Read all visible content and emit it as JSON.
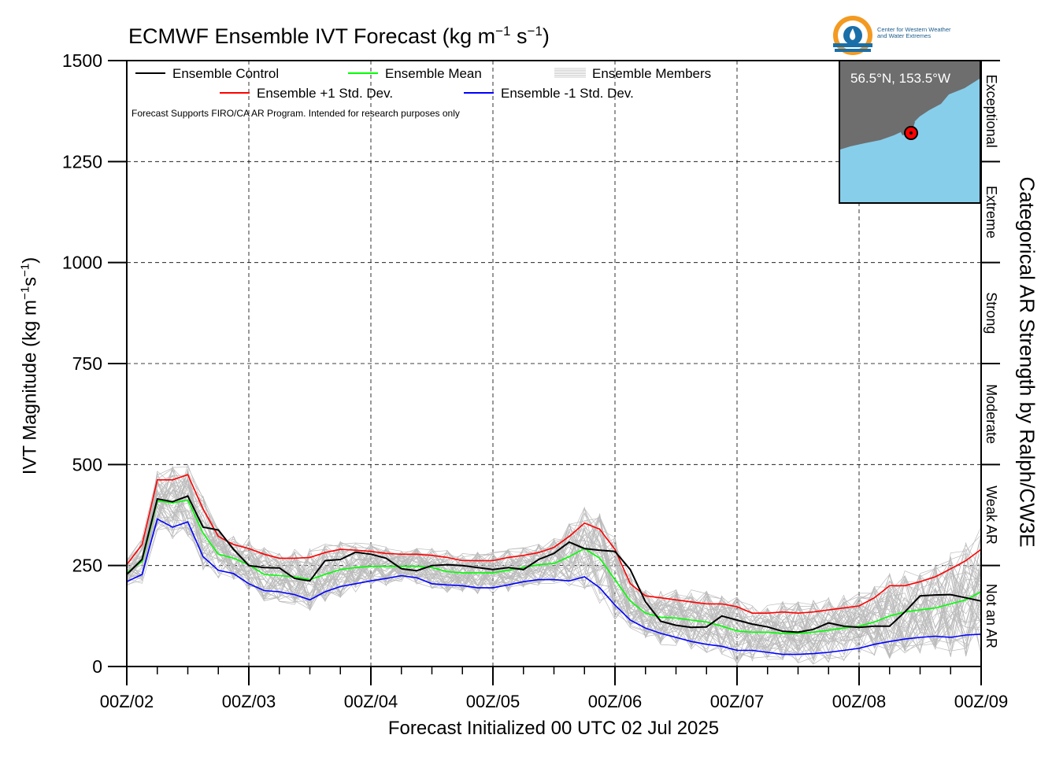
{
  "chart_data": {
    "type": "line",
    "title": "ECMWF Ensemble IVT Forecast",
    "title_units": {
      "base": "(kg m",
      "exp1": "−1",
      "mid": " s",
      "exp2": "−1",
      "end": ")"
    },
    "ylabel": {
      "base": "IVT Magnitude (kg m",
      "exp1": "−1",
      "mid": "s",
      "exp2": "−1",
      "end": ")"
    },
    "xlabel": "Forecast Initialized 00 UTC 02 Jul 2025",
    "right_label": "Categorical AR Strength by Ralph/CW3E",
    "note": "Forecast Supports FIRO/CA AR Program. Intended for research purposes only",
    "ylim": [
      0,
      1500
    ],
    "yticks": [
      0,
      250,
      500,
      750,
      1000,
      1250,
      1500
    ],
    "xlim": [
      0,
      168
    ],
    "xticks": [
      {
        "t": 0,
        "label": "00Z/02"
      },
      {
        "t": 24,
        "label": "00Z/03"
      },
      {
        "t": 48,
        "label": "00Z/04"
      },
      {
        "t": 72,
        "label": "00Z/05"
      },
      {
        "t": 96,
        "label": "00Z/06"
      },
      {
        "t": 120,
        "label": "00Z/07"
      },
      {
        "t": 144,
        "label": "00Z/08"
      },
      {
        "t": 168,
        "label": "00Z/09"
      }
    ],
    "grid": true,
    "legend_placement": "top-left",
    "categories_right": [
      {
        "label": "Not an AR",
        "from": 0,
        "to": 250
      },
      {
        "label": "Weak AR",
        "from": 250,
        "to": 500
      },
      {
        "label": "Moderate",
        "from": 500,
        "to": 750
      },
      {
        "label": "Strong",
        "from": 750,
        "to": 1000
      },
      {
        "label": "Extreme",
        "from": 1000,
        "to": 1250
      },
      {
        "label": "Exceptional",
        "from": 1250,
        "to": 1500
      }
    ],
    "series": [
      {
        "name": "Ensemble Control",
        "color": "#000000",
        "points": [
          [
            0,
            228
          ],
          [
            3,
            265
          ],
          [
            6,
            415
          ],
          [
            9,
            408
          ],
          [
            12,
            422
          ],
          [
            15,
            345
          ],
          [
            18,
            338
          ],
          [
            21,
            290
          ],
          [
            24,
            250
          ],
          [
            27,
            245
          ],
          [
            30,
            244
          ],
          [
            33,
            218
          ],
          [
            36,
            212
          ],
          [
            39,
            262
          ],
          [
            42,
            265
          ],
          [
            45,
            283
          ],
          [
            48,
            278
          ],
          [
            51,
            268
          ],
          [
            54,
            242
          ],
          [
            57,
            237
          ],
          [
            60,
            250
          ],
          [
            63,
            252
          ],
          [
            66,
            250
          ],
          [
            69,
            245
          ],
          [
            72,
            240
          ],
          [
            75,
            245
          ],
          [
            78,
            240
          ],
          [
            81,
            265
          ],
          [
            84,
            280
          ],
          [
            87,
            308
          ],
          [
            90,
            292
          ],
          [
            93,
            288
          ],
          [
            96,
            285
          ],
          [
            99,
            240
          ],
          [
            102,
            160
          ],
          [
            105,
            112
          ],
          [
            108,
            102
          ],
          [
            111,
            97
          ],
          [
            114,
            98
          ],
          [
            117,
            125
          ],
          [
            120,
            115
          ],
          [
            123,
            105
          ],
          [
            126,
            98
          ],
          [
            129,
            87
          ],
          [
            132,
            85
          ],
          [
            135,
            92
          ],
          [
            138,
            108
          ],
          [
            141,
            100
          ],
          [
            144,
            97
          ],
          [
            147,
            100
          ],
          [
            150,
            100
          ],
          [
            153,
            135
          ],
          [
            156,
            175
          ],
          [
            159,
            177
          ],
          [
            162,
            178
          ],
          [
            165,
            170
          ],
          [
            168,
            162
          ]
        ]
      },
      {
        "name": "Ensemble Mean",
        "color": "#00ff00",
        "points": [
          [
            0,
            232
          ],
          [
            3,
            260
          ],
          [
            6,
            410
          ],
          [
            9,
            405
          ],
          [
            12,
            412
          ],
          [
            15,
            330
          ],
          [
            18,
            278
          ],
          [
            21,
            268
          ],
          [
            24,
            252
          ],
          [
            27,
            228
          ],
          [
            30,
            225
          ],
          [
            33,
            222
          ],
          [
            36,
            215
          ],
          [
            39,
            228
          ],
          [
            42,
            240
          ],
          [
            45,
            245
          ],
          [
            48,
            248
          ],
          [
            51,
            248
          ],
          [
            54,
            248
          ],
          [
            57,
            248
          ],
          [
            60,
            245
          ],
          [
            63,
            235
          ],
          [
            66,
            232
          ],
          [
            69,
            232
          ],
          [
            72,
            232
          ],
          [
            75,
            238
          ],
          [
            78,
            245
          ],
          [
            81,
            252
          ],
          [
            84,
            255
          ],
          [
            87,
            272
          ],
          [
            90,
            292
          ],
          [
            93,
            268
          ],
          [
            96,
            215
          ],
          [
            99,
            162
          ],
          [
            102,
            132
          ],
          [
            105,
            122
          ],
          [
            108,
            120
          ],
          [
            111,
            115
          ],
          [
            114,
            110
          ],
          [
            117,
            100
          ],
          [
            120,
            88
          ],
          [
            123,
            85
          ],
          [
            126,
            85
          ],
          [
            129,
            82
          ],
          [
            132,
            82
          ],
          [
            135,
            85
          ],
          [
            138,
            90
          ],
          [
            141,
            95
          ],
          [
            144,
            100
          ],
          [
            147,
            110
          ],
          [
            150,
            125
          ],
          [
            153,
            135
          ],
          [
            156,
            140
          ],
          [
            159,
            145
          ],
          [
            162,
            155
          ],
          [
            165,
            165
          ],
          [
            168,
            185
          ]
        ]
      },
      {
        "name": "Ensemble +1 Std. Dev.",
        "color": "#ff0000",
        "points": [
          [
            0,
            252
          ],
          [
            3,
            302
          ],
          [
            6,
            462
          ],
          [
            9,
            462
          ],
          [
            12,
            475
          ],
          [
            15,
            390
          ],
          [
            18,
            322
          ],
          [
            21,
            302
          ],
          [
            24,
            292
          ],
          [
            27,
            278
          ],
          [
            30,
            268
          ],
          [
            33,
            268
          ],
          [
            36,
            270
          ],
          [
            39,
            282
          ],
          [
            42,
            290
          ],
          [
            45,
            288
          ],
          [
            48,
            285
          ],
          [
            51,
            280
          ],
          [
            54,
            278
          ],
          [
            57,
            278
          ],
          [
            60,
            275
          ],
          [
            63,
            270
          ],
          [
            66,
            262
          ],
          [
            69,
            262
          ],
          [
            72,
            262
          ],
          [
            75,
            270
          ],
          [
            78,
            275
          ],
          [
            81,
            282
          ],
          [
            84,
            295
          ],
          [
            87,
            322
          ],
          [
            90,
            355
          ],
          [
            93,
            340
          ],
          [
            96,
            290
          ],
          [
            99,
            205
          ],
          [
            102,
            175
          ],
          [
            105,
            170
          ],
          [
            108,
            165
          ],
          [
            111,
            160
          ],
          [
            114,
            155
          ],
          [
            117,
            155
          ],
          [
            120,
            148
          ],
          [
            123,
            132
          ],
          [
            126,
            132
          ],
          [
            129,
            135
          ],
          [
            132,
            132
          ],
          [
            135,
            135
          ],
          [
            138,
            140
          ],
          [
            141,
            145
          ],
          [
            144,
            150
          ],
          [
            147,
            170
          ],
          [
            150,
            200
          ],
          [
            153,
            200
          ],
          [
            156,
            210
          ],
          [
            159,
            222
          ],
          [
            162,
            242
          ],
          [
            165,
            262
          ],
          [
            168,
            290
          ]
        ]
      },
      {
        "name": "Ensemble -1 Std. Dev.",
        "color": "#0000ff",
        "points": [
          [
            0,
            210
          ],
          [
            3,
            228
          ],
          [
            6,
            365
          ],
          [
            9,
            345
          ],
          [
            12,
            358
          ],
          [
            15,
            272
          ],
          [
            18,
            238
          ],
          [
            21,
            230
          ],
          [
            24,
            205
          ],
          [
            27,
            188
          ],
          [
            30,
            185
          ],
          [
            33,
            178
          ],
          [
            36,
            165
          ],
          [
            39,
            185
          ],
          [
            42,
            198
          ],
          [
            45,
            205
          ],
          [
            48,
            212
          ],
          [
            51,
            218
          ],
          [
            54,
            225
          ],
          [
            57,
            220
          ],
          [
            60,
            205
          ],
          [
            63,
            202
          ],
          [
            66,
            200
          ],
          [
            69,
            195
          ],
          [
            72,
            195
          ],
          [
            75,
            202
          ],
          [
            78,
            210
          ],
          [
            81,
            215
          ],
          [
            84,
            215
          ],
          [
            87,
            212
          ],
          [
            90,
            222
          ],
          [
            93,
            195
          ],
          [
            96,
            152
          ],
          [
            99,
            115
          ],
          [
            102,
            95
          ],
          [
            105,
            82
          ],
          [
            108,
            72
          ],
          [
            111,
            62
          ],
          [
            114,
            55
          ],
          [
            117,
            50
          ],
          [
            120,
            40
          ],
          [
            123,
            40
          ],
          [
            126,
            35
          ],
          [
            129,
            30
          ],
          [
            132,
            30
          ],
          [
            135,
            32
          ],
          [
            138,
            35
          ],
          [
            141,
            40
          ],
          [
            144,
            45
          ],
          [
            147,
            55
          ],
          [
            150,
            62
          ],
          [
            153,
            68
          ],
          [
            156,
            72
          ],
          [
            159,
            75
          ],
          [
            162,
            72
          ],
          [
            165,
            78
          ],
          [
            168,
            80
          ]
        ]
      }
    ],
    "members_legend": "Ensemble Members",
    "members_color": "#bbbbbb",
    "members_count": 50
  },
  "inset_map": {
    "label": "56.5°N, 153.5°W",
    "lat": 56.5,
    "lon": -153.5,
    "ocean_color": "#87ceeb",
    "land_color": "#6e6e6e",
    "marker_color": "#ff0000"
  },
  "logo": {
    "line1": "Center for Western Weather",
    "line2": "and Water Extremes"
  }
}
